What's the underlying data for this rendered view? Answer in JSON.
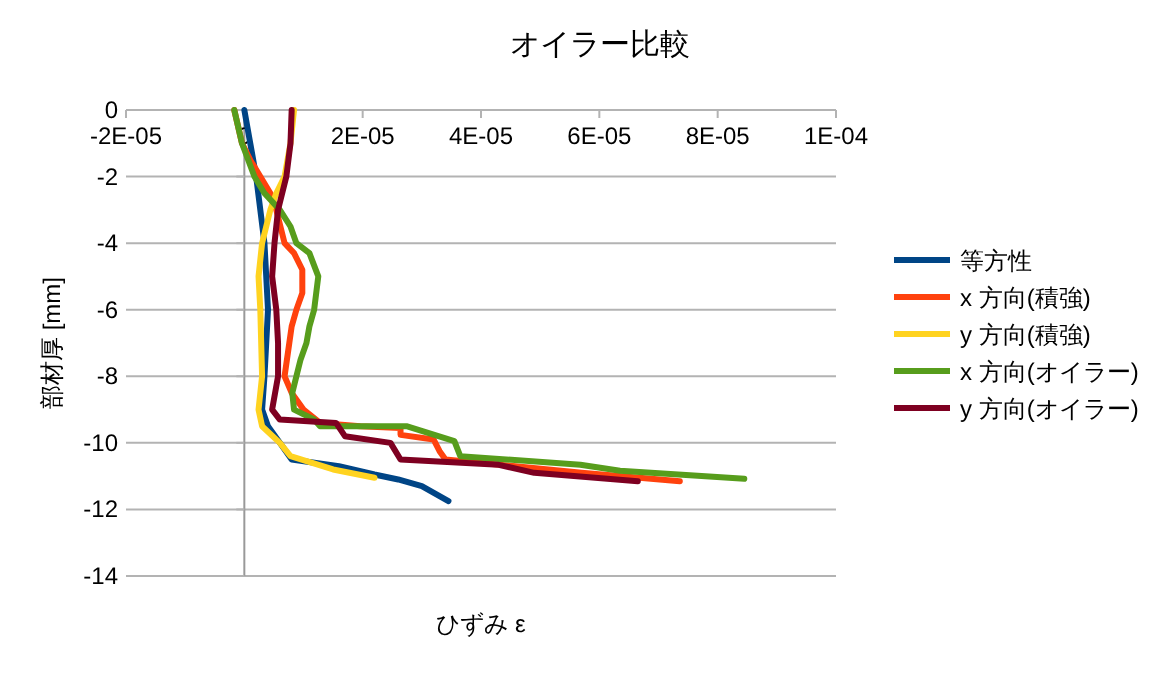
{
  "chart_data": {
    "type": "line",
    "title": "オイラー比較",
    "xlabel": "ひずみ ε",
    "ylabel": "部材厚 [mm]",
    "xlim": [
      -2e-05,
      0.0001
    ],
    "xticks": [
      {
        "value": -2e-05,
        "label": "-2E-05"
      },
      0,
      {
        "value": 2e-05,
        "label": "2E-05"
      },
      {
        "value": 4e-05,
        "label": "4E-05"
      },
      {
        "value": 6e-05,
        "label": "6E-05"
      },
      {
        "value": 8e-05,
        "label": "8E-05"
      },
      {
        "value": 0.0001,
        "label": "1E-04"
      }
    ],
    "ylim": [
      -14,
      0
    ],
    "yticks": [
      -14,
      -12,
      -10,
      -8,
      -6,
      -4,
      -2,
      0
    ],
    "grid": "y",
    "legend": "right",
    "marker": "none",
    "line_style": "solid",
    "series": [
      {
        "name": "等方性",
        "color": "#004586",
        "x": [
          0,
          1e-06,
          2e-06,
          3.4e-06,
          4e-06,
          3.4e-06,
          3e-06,
          4e-06,
          6e-06,
          8e-06,
          1.6e-05,
          2.2e-05,
          2.6e-05,
          3e-05,
          3.45e-05
        ],
        "values": [
          0,
          -1,
          -2,
          -4,
          -6,
          -8,
          -9,
          -9.5,
          -10,
          -10.5,
          -10.7,
          -10.95,
          -11.1,
          -11.3,
          -11.75
        ]
      },
      {
        "name": "x 方向(積強)",
        "color": "#ff420e",
        "x": [
          -1.7e-06,
          -4e-07,
          1e-06,
          2.7e-06,
          4.4e-06,
          5.4e-06,
          6.8e-06,
          8.4e-06,
          9.8e-06,
          9.8e-06,
          8.8e-06,
          8e-06,
          7.6e-06,
          6.8e-06,
          8e-06,
          1e-05,
          1.28e-05,
          1.96e-05,
          2.64e-05,
          2.64e-05,
          3.2e-05,
          3.3e-05,
          3.4e-05,
          5.7e-05,
          7.36e-05
        ],
        "values": [
          0,
          -1,
          -1.5,
          -2,
          -2.5,
          -3,
          -4,
          -4.3,
          -4.8,
          -5.5,
          -6,
          -6.5,
          -7,
          -8,
          -8.5,
          -9,
          -9.4,
          -9.5,
          -9.55,
          -9.76,
          -9.9,
          -10.25,
          -10.5,
          -10.9,
          -11.15
        ]
      },
      {
        "name": "y 方向(積強)",
        "color": "#ffd320",
        "x": [
          8.4e-06,
          7.8e-06,
          6.8e-06,
          5.4e-06,
          4.4e-06,
          3e-06,
          2.4e-06,
          2.7e-06,
          3e-06,
          2.4e-06,
          3e-06,
          6e-06,
          7.8e-06,
          1.5e-05,
          2.2e-05
        ],
        "values": [
          0,
          -1,
          -2,
          -2.5,
          -3,
          -4,
          -5,
          -6,
          -8,
          -9,
          -9.5,
          -10,
          -10.4,
          -10.8,
          -11.05
        ]
      },
      {
        "name": "x 方向(オイラー)",
        "color": "#579d1c",
        "x": [
          -1.7e-06,
          -4e-07,
          1.7e-06,
          3.4e-06,
          6e-06,
          7.8e-06,
          8.8e-06,
          1.1e-05,
          1.25e-05,
          1.18e-05,
          1.1e-05,
          1.05e-05,
          9.5e-06,
          8.8e-06,
          8.1e-06,
          8.4e-06,
          1.18e-05,
          1.28e-05,
          2.74e-05,
          3.55e-05,
          3.65e-05,
          5.68e-05,
          6.35e-05,
          8.45e-05
        ],
        "values": [
          0,
          -1,
          -2,
          -2.5,
          -3,
          -3.5,
          -4,
          -4.3,
          -5,
          -6,
          -6.5,
          -7,
          -7.5,
          -8,
          -8.5,
          -9,
          -9.3,
          -9.5,
          -9.5,
          -9.95,
          -10.4,
          -10.66,
          -10.84,
          -11.08
        ]
      },
      {
        "name": "y 方向(オイラー)",
        "color": "#7e0021",
        "x": [
          8e-06,
          7.8e-06,
          7.1e-06,
          5.7e-06,
          5.1e-06,
          4.7e-06,
          5.4e-06,
          5.7e-06,
          5.7e-06,
          4.7e-06,
          6e-06,
          1.55e-05,
          1.7e-05,
          2.47e-05,
          2.64e-05,
          4.3e-05,
          4.9e-05,
          6.65e-05
        ],
        "values": [
          0,
          -1,
          -2,
          -3,
          -4,
          -5,
          -6,
          -7,
          -8,
          -9,
          -9.3,
          -9.4,
          -9.8,
          -10,
          -10.5,
          -10.66,
          -10.9,
          -11.15
        ]
      }
    ]
  }
}
